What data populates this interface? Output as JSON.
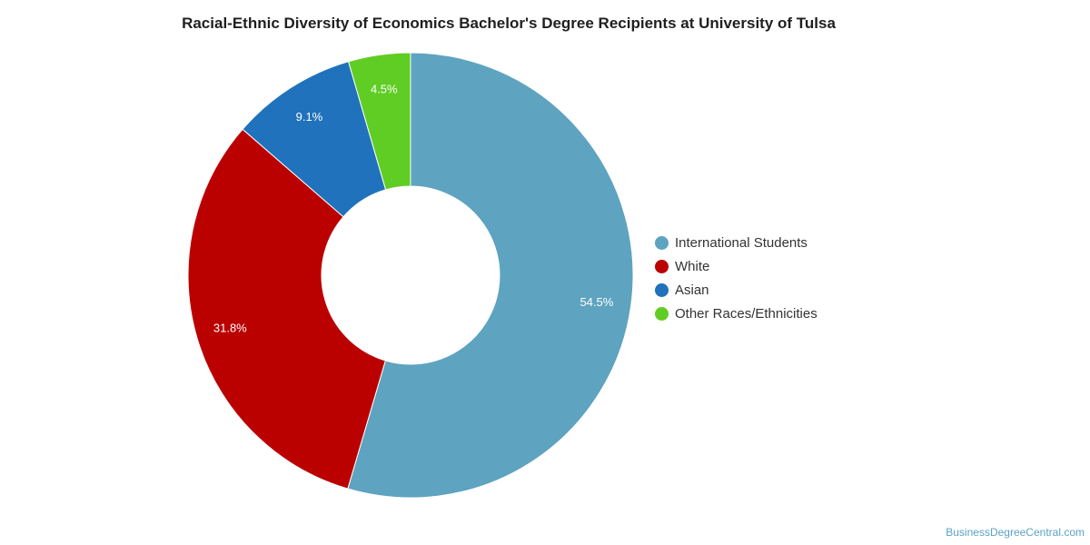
{
  "chart_data": {
    "type": "pie",
    "title": "Racial-Ethnic Diversity of Economics Bachelor's Degree Recipients at University of Tulsa",
    "donut": true,
    "legend_position": "right",
    "slices": [
      {
        "label": "International Students",
        "value": 54.5,
        "value_label": "54.5%",
        "color": "#5ea3bf"
      },
      {
        "label": "White",
        "value": 31.8,
        "value_label": "31.8%",
        "color": "#bb0000"
      },
      {
        "label": "Asian",
        "value": 9.1,
        "value_label": "9.1%",
        "color": "#1f72bb"
      },
      {
        "label": "Other Races/Ethnicities",
        "value": 4.5,
        "value_label": "4.5%",
        "color": "#60cd24"
      }
    ]
  },
  "watermark": "BusinessDegreeCentral.com"
}
